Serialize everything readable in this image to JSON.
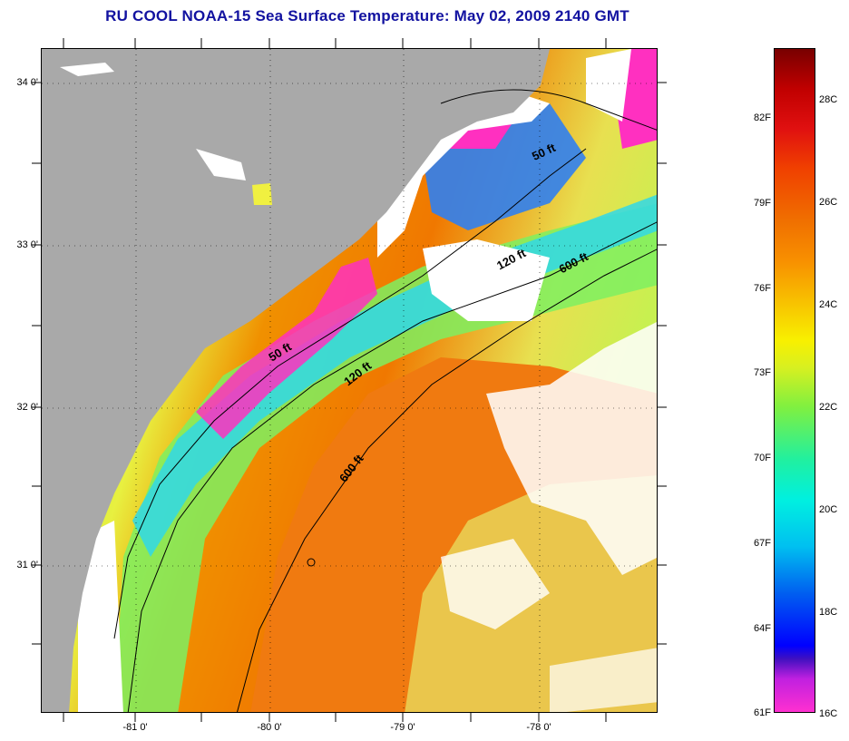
{
  "title": "RU COOL  NOAA-15  Sea Surface Temperature:  May 02, 2009 2140 GMT",
  "map": {
    "lat_ticks": [
      "34 0'",
      "33 0'",
      "32 0'",
      "31 0'"
    ],
    "lon_ticks": [
      "-81 0'",
      "-80 0'",
      "-79 0'",
      "-78 0'"
    ],
    "depth_labels": [
      "50 ft",
      "120 ft",
      "600 ft",
      "50 ft",
      "120 ft",
      "600 ft"
    ]
  },
  "colorbar": {
    "fahrenheit": [
      "82F",
      "79F",
      "76F",
      "73F",
      "70F",
      "67F",
      "64F",
      "61F"
    ],
    "celsius": [
      "28C",
      "26C",
      "24C",
      "22C",
      "20C",
      "18C",
      "16C"
    ]
  },
  "colors": {
    "land": "#a9a9a9",
    "cloud": "#ffffff",
    "title": "#1212a0",
    "warm": "#f07000",
    "mid": "#f0f000",
    "cool": "#00e0e0",
    "cold": "#ff30c0"
  }
}
